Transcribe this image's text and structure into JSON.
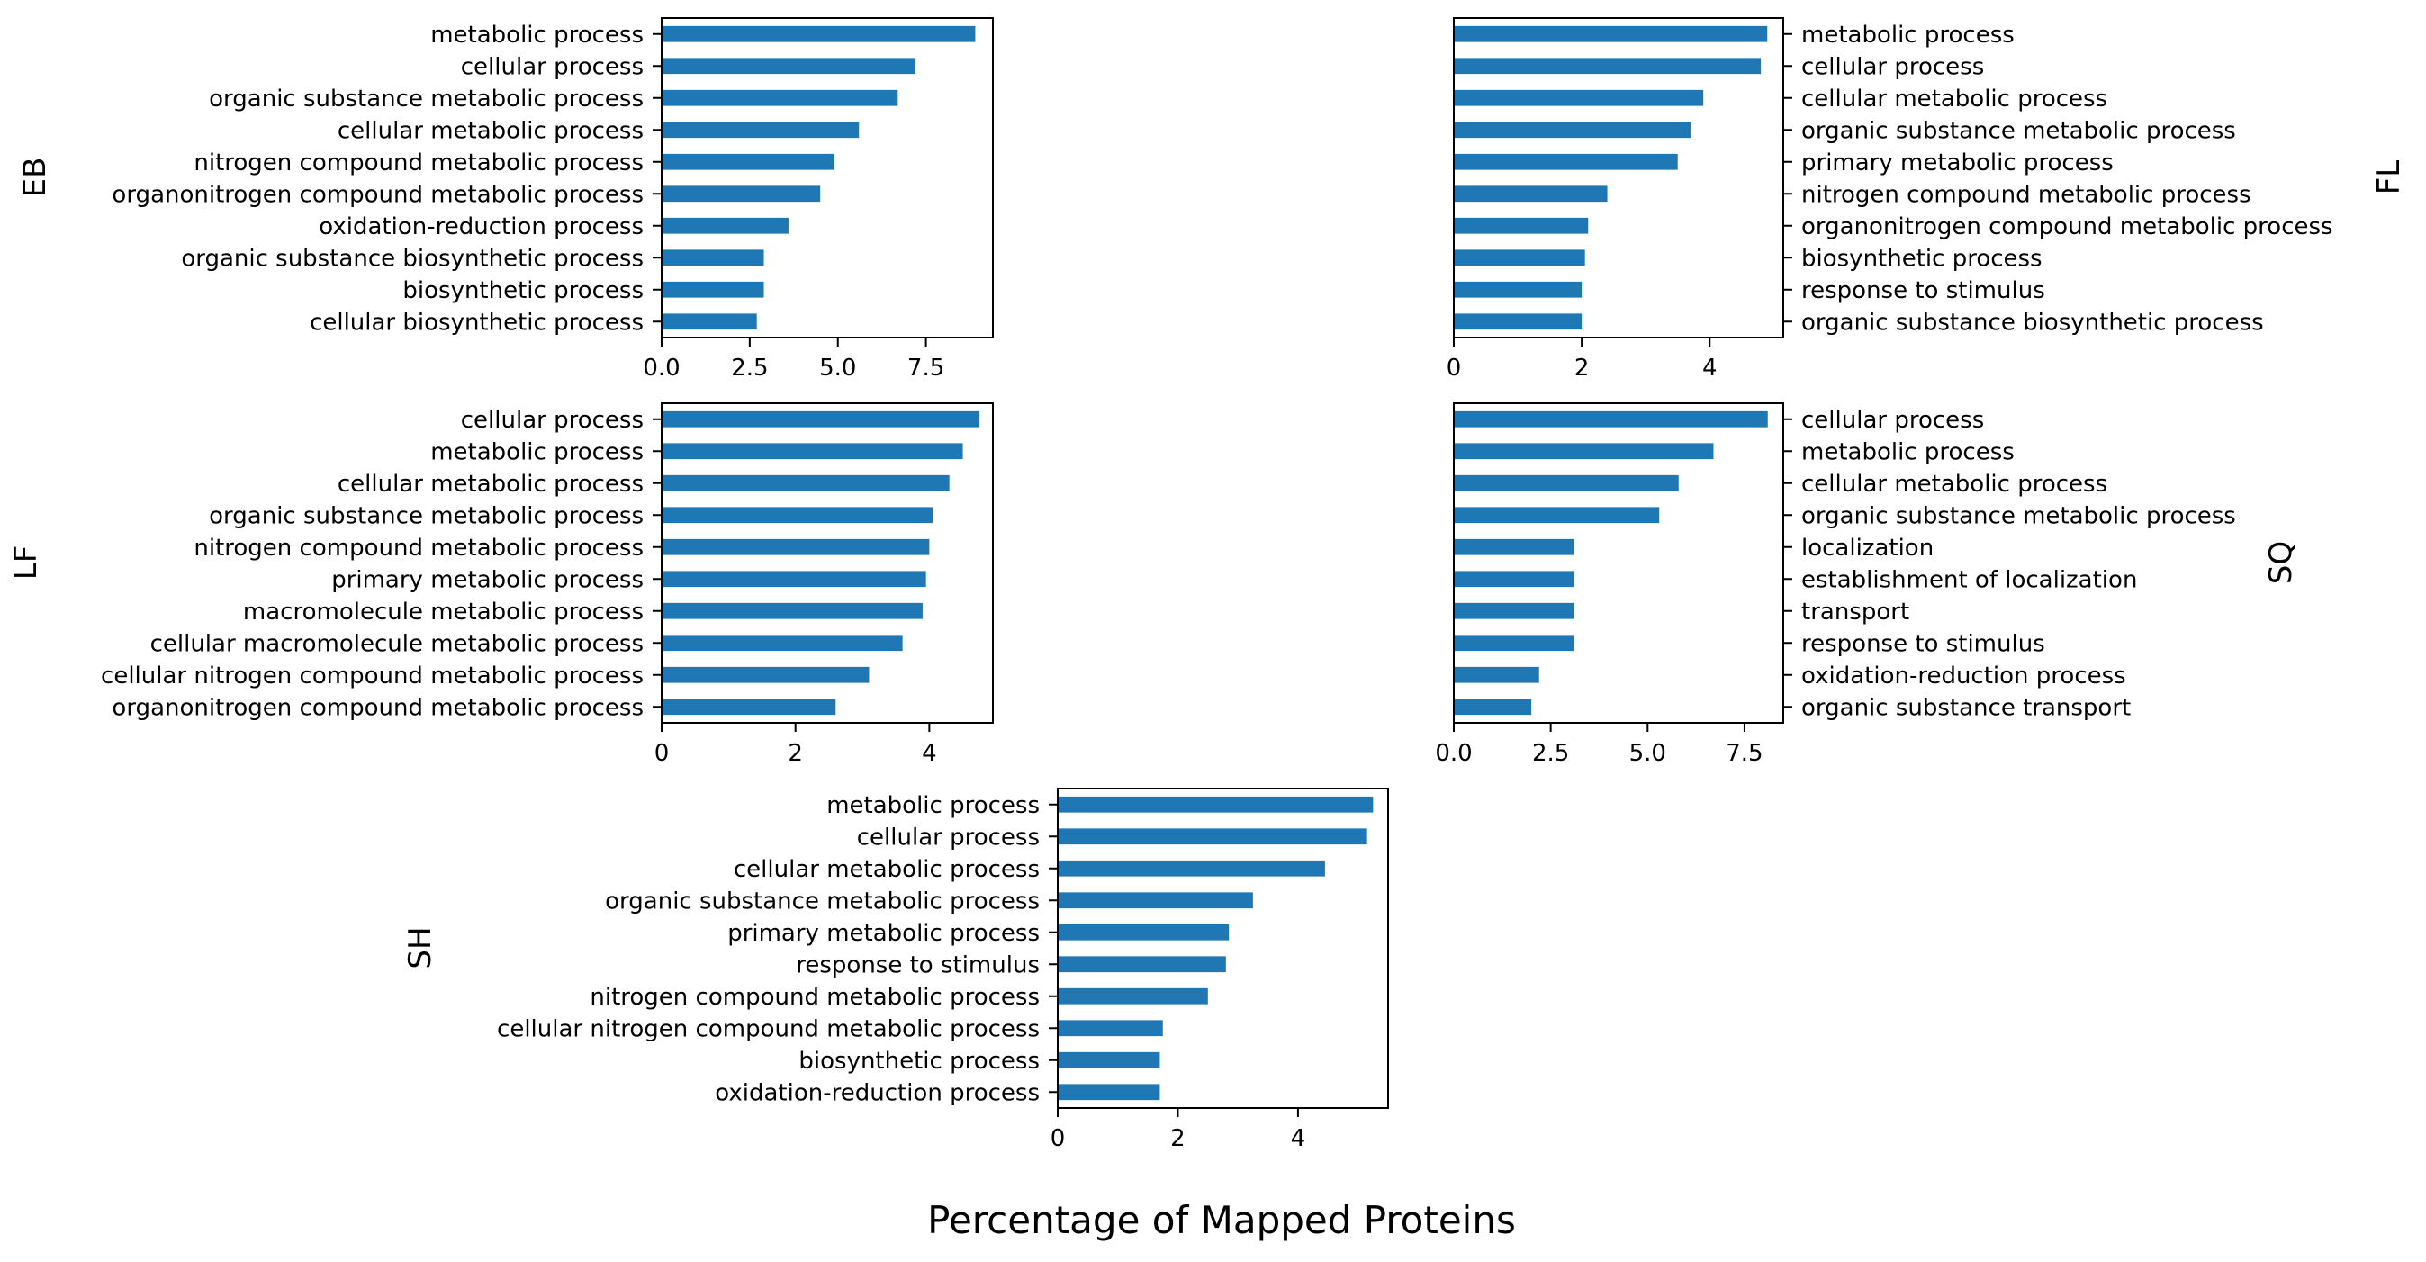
{
  "figure": {
    "xlabel": "Percentage of Mapped Proteins"
  },
  "colors": {
    "bar": "#1f77b4",
    "axis": "#000000",
    "background": "#ffffff"
  },
  "chart_data": [
    {
      "type": "bar",
      "orientation": "horizontal",
      "ylabel": "EB",
      "ylabel_side": "left",
      "categories": [
        "metabolic process",
        "cellular process",
        "organic substance metabolic process",
        "cellular metabolic process",
        "nitrogen compound metabolic process",
        "organonitrogen compound metabolic process",
        "oxidation-reduction process",
        "organic substance biosynthetic process",
        "biosynthetic process",
        "cellular biosynthetic process"
      ],
      "values": [
        8.9,
        7.2,
        6.7,
        5.6,
        4.9,
        4.5,
        3.6,
        2.9,
        2.9,
        2.7
      ],
      "xlim": [
        0,
        9.4
      ],
      "xticks": [
        0,
        2.5,
        5,
        7.5
      ],
      "xtick_labels": [
        "0.0",
        "2.5",
        "5.0",
        "7.5"
      ],
      "grid": false
    },
    {
      "type": "bar",
      "orientation": "horizontal",
      "ylabel": "FL",
      "ylabel_side": "right",
      "categories": [
        "metabolic process",
        "cellular process",
        "cellular metabolic process",
        "organic substance metabolic process",
        "primary metabolic process",
        "nitrogen compound metabolic process",
        "organonitrogen compound metabolic process",
        "biosynthetic process",
        "response to stimulus",
        "organic substance biosynthetic process"
      ],
      "values": [
        4.9,
        4.8,
        3.9,
        3.7,
        3.5,
        2.4,
        2.1,
        2.05,
        2.0,
        2.0
      ],
      "xlim": [
        0,
        5.15
      ],
      "xticks": [
        0,
        2,
        4
      ],
      "xtick_labels": [
        "0",
        "2",
        "4"
      ],
      "grid": false
    },
    {
      "type": "bar",
      "orientation": "horizontal",
      "ylabel": "LF",
      "ylabel_side": "left",
      "categories": [
        "cellular process",
        "metabolic process",
        "cellular metabolic process",
        "organic substance metabolic process",
        "nitrogen compound metabolic process",
        "primary metabolic process",
        "macromolecule metabolic process",
        "cellular macromolecule metabolic process",
        "cellular nitrogen compound metabolic process",
        "organonitrogen compound metabolic process"
      ],
      "values": [
        4.75,
        4.5,
        4.3,
        4.05,
        4.0,
        3.95,
        3.9,
        3.6,
        3.1,
        2.6
      ],
      "xlim": [
        0,
        4.95
      ],
      "xticks": [
        0,
        2,
        4
      ],
      "xtick_labels": [
        "0",
        "2",
        "4"
      ],
      "grid": false
    },
    {
      "type": "bar",
      "orientation": "horizontal",
      "ylabel": "SQ",
      "ylabel_side": "right",
      "categories": [
        "cellular process",
        "metabolic process",
        "cellular metabolic process",
        "organic substance metabolic process",
        "localization",
        "establishment of localization",
        "transport",
        "response to stimulus",
        "oxidation-reduction process",
        "organic substance transport"
      ],
      "values": [
        8.1,
        6.7,
        5.8,
        5.3,
        3.1,
        3.1,
        3.1,
        3.1,
        2.2,
        2.0
      ],
      "xlim": [
        0,
        8.5
      ],
      "xticks": [
        0,
        2.5,
        5,
        7.5
      ],
      "xtick_labels": [
        "0.0",
        "2.5",
        "5.0",
        "7.5"
      ],
      "grid": false
    },
    {
      "type": "bar",
      "orientation": "horizontal",
      "ylabel": "SH",
      "ylabel_side": "left",
      "categories": [
        "metabolic process",
        "cellular process",
        "cellular metabolic process",
        "organic substance metabolic process",
        "primary metabolic process",
        "response to stimulus",
        "nitrogen compound metabolic process",
        "cellular nitrogen compound metabolic process",
        "biosynthetic process",
        "oxidation-reduction process"
      ],
      "values": [
        5.25,
        5.15,
        4.45,
        3.25,
        2.85,
        2.8,
        2.5,
        1.75,
        1.7,
        1.7
      ],
      "xlim": [
        0,
        5.5
      ],
      "xticks": [
        0,
        2,
        4
      ],
      "xtick_labels": [
        "0",
        "2",
        "4"
      ],
      "grid": false
    }
  ]
}
